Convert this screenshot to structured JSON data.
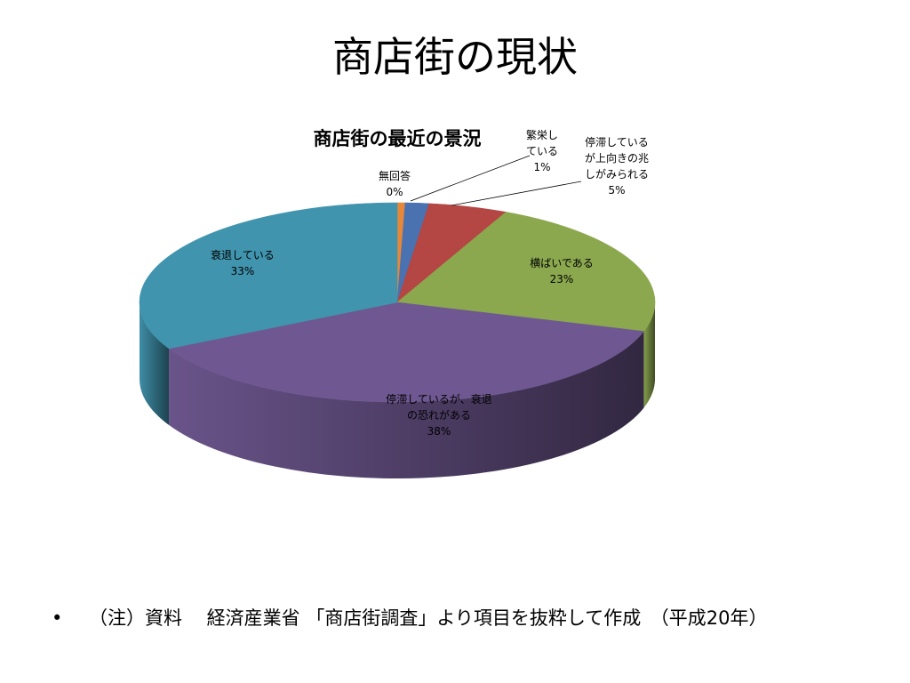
{
  "slide": {
    "title": "商店街の現状",
    "bullet": "•",
    "note": "（注）資料　 経済産業省 「商店街調査」より項目を抜粋して作成　（平成20年）"
  },
  "chart_data": {
    "type": "pie",
    "title": "商店街の最近の景況",
    "start_angle_deg": 0,
    "slices": [
      {
        "label": "無回答",
        "value": 0.5,
        "percent_label": "0%",
        "color": "#e5883b"
      },
      {
        "label": "繁栄し\nている",
        "value": 1.5,
        "percent_label": "1%",
        "color": "#4a72b0"
      },
      {
        "label": "停滞している\nが上向きの兆\nしがみられる",
        "value": 5,
        "percent_label": "5%",
        "color": "#b44643"
      },
      {
        "label": "横ばいである",
        "value": 23,
        "percent_label": "23%",
        "color": "#8ba84f"
      },
      {
        "label": "停滞しているが、衰退\nの恐れがある",
        "value": 38,
        "percent_label": "38%",
        "color": "#6f5891"
      },
      {
        "label": "衰退している",
        "value": 33,
        "percent_label": "33%",
        "color": "#4194ae"
      }
    ]
  }
}
